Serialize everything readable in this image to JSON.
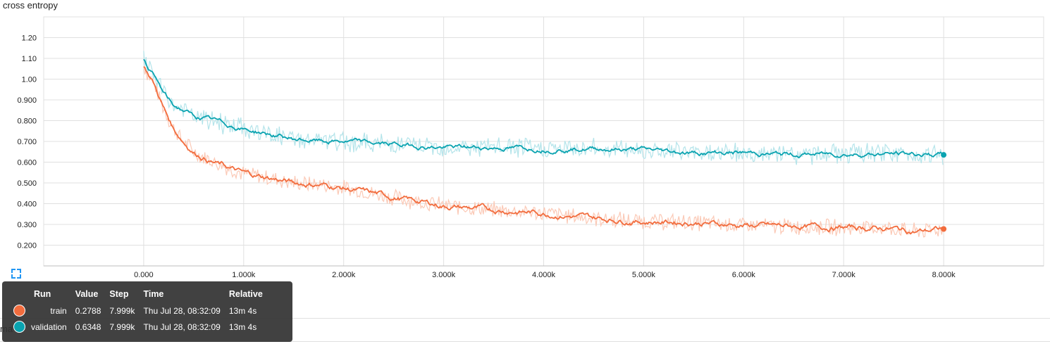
{
  "chart_title": "cross entropy",
  "colors": {
    "train": "#f26c3d",
    "train_raw": "#fbc9b6",
    "validation": "#0aa3b0",
    "validation_raw": "#b4e4ea",
    "grid": "#e0e0e0"
  },
  "icons": {
    "expand": "fit-domain-icon"
  },
  "partial_label": "ma",
  "tooltip": {
    "headers": {
      "run": "Run",
      "value": "Value",
      "step": "Step",
      "time": "Time",
      "relative": "Relative"
    },
    "rows": [
      {
        "run": "train",
        "value": "0.2788",
        "step": "7.999k",
        "time": "Thu Jul 28, 08:32:09",
        "relative": "13m 4s"
      },
      {
        "run": "validation",
        "value": "0.6348",
        "step": "7.999k",
        "time": "Thu Jul 28, 08:32:09",
        "relative": "13m 4s"
      }
    ]
  },
  "chart_data": {
    "type": "line",
    "title": "cross entropy",
    "xlabel": "",
    "ylabel": "",
    "xlim": [
      -1000,
      9000
    ],
    "ylim": [
      0.1,
      1.3
    ],
    "x_ticks": [
      0,
      1000,
      2000,
      3000,
      4000,
      5000,
      6000,
      7000,
      8000
    ],
    "x_tick_labels": [
      "0.000",
      "1.000k",
      "2.000k",
      "3.000k",
      "4.000k",
      "5.000k",
      "6.000k",
      "7.000k",
      "8.000k"
    ],
    "y_ticks": [
      0.2,
      0.3,
      0.4,
      0.5,
      0.6,
      0.7,
      0.8,
      0.9,
      1.0,
      1.1,
      1.2
    ],
    "y_tick_labels": [
      "0.200",
      "0.300",
      "0.400",
      "0.500",
      "0.600",
      "0.700",
      "0.800",
      "0.900",
      "1.00",
      "1.10",
      "1.20"
    ],
    "grid": true,
    "series": [
      {
        "name": "train",
        "x": [
          0,
          100,
          200,
          300,
          400,
          500,
          700,
          1000,
          1300,
          1500,
          1800,
          2000,
          2500,
          3000,
          3500,
          4000,
          4500,
          5000,
          5500,
          6000,
          6500,
          7000,
          7500,
          7700,
          8000
        ],
        "values": [
          1.06,
          0.98,
          0.86,
          0.76,
          0.7,
          0.65,
          0.6,
          0.545,
          0.52,
          0.5,
          0.49,
          0.475,
          0.43,
          0.39,
          0.37,
          0.355,
          0.33,
          0.315,
          0.31,
          0.295,
          0.29,
          0.285,
          0.28,
          0.265,
          0.278
        ]
      },
      {
        "name": "validation",
        "x": [
          0,
          100,
          200,
          300,
          400,
          500,
          700,
          1000,
          1300,
          1500,
          1800,
          2000,
          2500,
          3000,
          3500,
          4000,
          4500,
          5000,
          5500,
          6000,
          6500,
          7000,
          7500,
          8000
        ],
        "values": [
          1.09,
          1.02,
          0.93,
          0.87,
          0.85,
          0.82,
          0.8,
          0.76,
          0.73,
          0.71,
          0.7,
          0.7,
          0.685,
          0.67,
          0.67,
          0.665,
          0.665,
          0.66,
          0.645,
          0.645,
          0.635,
          0.64,
          0.64,
          0.635
        ]
      }
    ]
  }
}
